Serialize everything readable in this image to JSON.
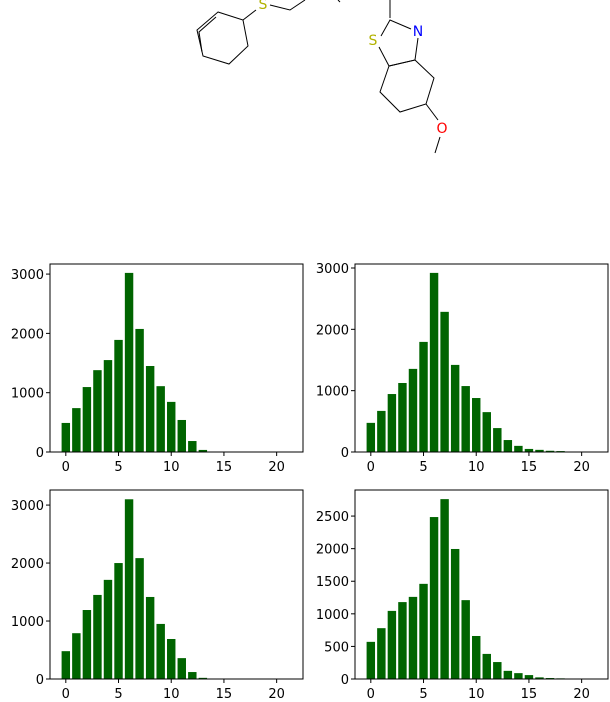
{
  "molecule": {
    "atoms": [
      "S",
      "S",
      "N",
      "O"
    ]
  },
  "chart_data": [
    {
      "type": "bar",
      "color": "#006400",
      "xlim": [
        -1.5,
        22.5
      ],
      "ylim": [
        0,
        3170
      ],
      "xticks": [
        0,
        5,
        10,
        15,
        20
      ],
      "yticks": [
        0,
        1000,
        2000,
        3000
      ],
      "x": [
        0,
        1,
        2,
        3,
        4,
        5,
        6,
        7,
        8,
        9,
        10,
        11,
        12,
        13
      ],
      "values": [
        490,
        740,
        1095,
        1380,
        1550,
        1890,
        3020,
        2075,
        1450,
        1110,
        845,
        540,
        185,
        35
      ]
    },
    {
      "type": "bar",
      "color": "#006400",
      "xlim": [
        -1.5,
        22.5
      ],
      "ylim": [
        0,
        3065
      ],
      "xticks": [
        0,
        5,
        10,
        15,
        20
      ],
      "yticks": [
        0,
        1000,
        2000,
        3000
      ],
      "x": [
        0,
        1,
        2,
        3,
        4,
        5,
        6,
        7,
        8,
        9,
        10,
        11,
        12,
        13,
        14,
        15,
        16,
        17,
        18,
        19
      ],
      "values": [
        475,
        670,
        945,
        1125,
        1355,
        1795,
        2920,
        2285,
        1420,
        1075,
        880,
        650,
        390,
        195,
        100,
        50,
        35,
        20,
        15,
        5
      ]
    },
    {
      "type": "bar",
      "color": "#006400",
      "xlim": [
        -1.5,
        22.5
      ],
      "ylim": [
        0,
        3260
      ],
      "xticks": [
        0,
        5,
        10,
        15,
        20
      ],
      "yticks": [
        0,
        1000,
        2000,
        3000
      ],
      "x": [
        0,
        1,
        2,
        3,
        4,
        5,
        6,
        7,
        8,
        9,
        10,
        11,
        12,
        13
      ],
      "values": [
        480,
        790,
        1190,
        1450,
        1710,
        2000,
        3100,
        2085,
        1415,
        950,
        690,
        360,
        120,
        20
      ]
    },
    {
      "type": "bar",
      "color": "#006400",
      "xlim": [
        -1.5,
        22.5
      ],
      "ylim": [
        0,
        2900
      ],
      "xticks": [
        0,
        5,
        10,
        15,
        20
      ],
      "yticks": [
        0,
        500,
        1000,
        1500,
        2000,
        2500
      ],
      "x": [
        0,
        1,
        2,
        3,
        4,
        5,
        6,
        7,
        8,
        9,
        10,
        11,
        12,
        13,
        14,
        15,
        16,
        17,
        18
      ],
      "values": [
        570,
        780,
        1045,
        1180,
        1260,
        1460,
        2485,
        2760,
        1995,
        1210,
        660,
        385,
        260,
        125,
        90,
        60,
        25,
        15,
        10
      ]
    }
  ]
}
